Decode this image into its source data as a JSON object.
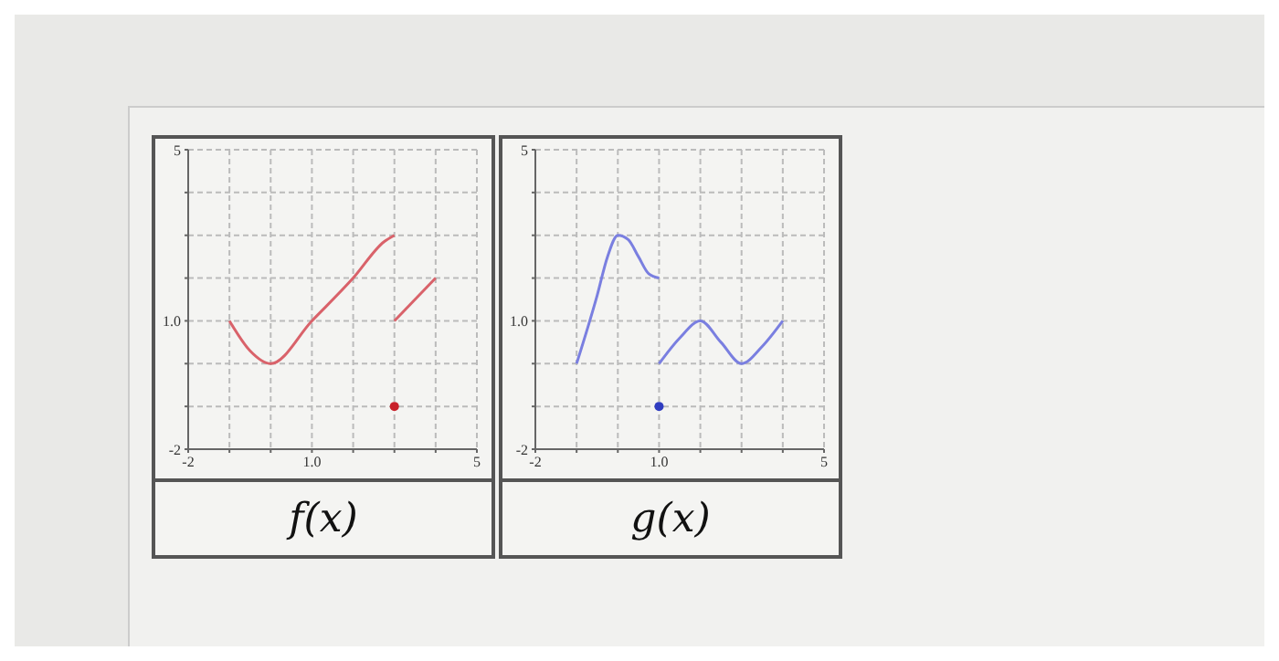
{
  "chart_data": [
    {
      "type": "line",
      "xlabel": "f(x)",
      "xlim": [
        -2,
        5
      ],
      "ylim": [
        -2,
        5
      ],
      "xticks": [
        {
          "value": -2,
          "label": "-2"
        },
        {
          "value": -1,
          "label": null
        },
        {
          "value": 0,
          "label": null
        },
        {
          "value": 1,
          "label": "1.0"
        },
        {
          "value": 2,
          "label": null
        },
        {
          "value": 3,
          "label": null
        },
        {
          "value": 4,
          "label": null
        },
        {
          "value": 5,
          "label": "5"
        }
      ],
      "yticks": [
        {
          "value": -2,
          "label": "-2"
        },
        {
          "value": -1,
          "label": null
        },
        {
          "value": 0,
          "label": null
        },
        {
          "value": 1,
          "label": "1.0"
        },
        {
          "value": 2,
          "label": null
        },
        {
          "value": 3,
          "label": null
        },
        {
          "value": 4,
          "label": null
        },
        {
          "value": 5,
          "label": "5"
        }
      ],
      "grid": true,
      "marker": "none",
      "line_style": "solid",
      "series": [
        {
          "color": "#d9626a",
          "x": [
            -1,
            -0.5,
            0,
            1,
            2,
            2.75,
            3
          ],
          "values": [
            1,
            0.3,
            0,
            1,
            2,
            2.85,
            3
          ]
        },
        {
          "color": "#d9626a",
          "x": [
            3,
            4
          ],
          "values": [
            1,
            2
          ]
        },
        {
          "type": "scatter",
          "marker": "circle",
          "color": "#c8202a",
          "x": [
            3
          ],
          "values": [
            -1
          ]
        }
      ]
    },
    {
      "type": "line",
      "xlabel": "g(x)",
      "xlim": [
        -2,
        5
      ],
      "ylim": [
        -2,
        5
      ],
      "xticks": [
        {
          "value": -2,
          "label": "-2"
        },
        {
          "value": -1,
          "label": null
        },
        {
          "value": 0,
          "label": null
        },
        {
          "value": 1,
          "label": "1.0"
        },
        {
          "value": 2,
          "label": null
        },
        {
          "value": 3,
          "label": null
        },
        {
          "value": 4,
          "label": null
        },
        {
          "value": 5,
          "label": "5"
        }
      ],
      "yticks": [
        {
          "value": -2,
          "label": "-2"
        },
        {
          "value": -1,
          "label": null
        },
        {
          "value": 0,
          "label": null
        },
        {
          "value": 1,
          "label": "1.0"
        },
        {
          "value": 2,
          "label": null
        },
        {
          "value": 3,
          "label": null
        },
        {
          "value": 4,
          "label": null
        },
        {
          "value": 5,
          "label": "5"
        }
      ],
      "grid": true,
      "marker": "none",
      "line_style": "solid",
      "series": [
        {
          "color": "#7a7fe0",
          "x": [
            -1,
            -0.5,
            -0.25,
            0,
            0.25,
            0.5,
            0.75,
            1
          ],
          "values": [
            0,
            1.6,
            2.5,
            3,
            2.9,
            2.5,
            2.1,
            2
          ]
        },
        {
          "color": "#7a7fe0",
          "x": [
            1,
            1.5,
            2,
            2.5,
            3,
            3.5,
            4
          ],
          "values": [
            0,
            0.6,
            1,
            0.5,
            0,
            0.4,
            1
          ]
        },
        {
          "type": "scatter",
          "marker": "circle",
          "color": "#2f3cc0",
          "x": [
            1
          ],
          "values": [
            -1
          ]
        }
      ]
    }
  ]
}
